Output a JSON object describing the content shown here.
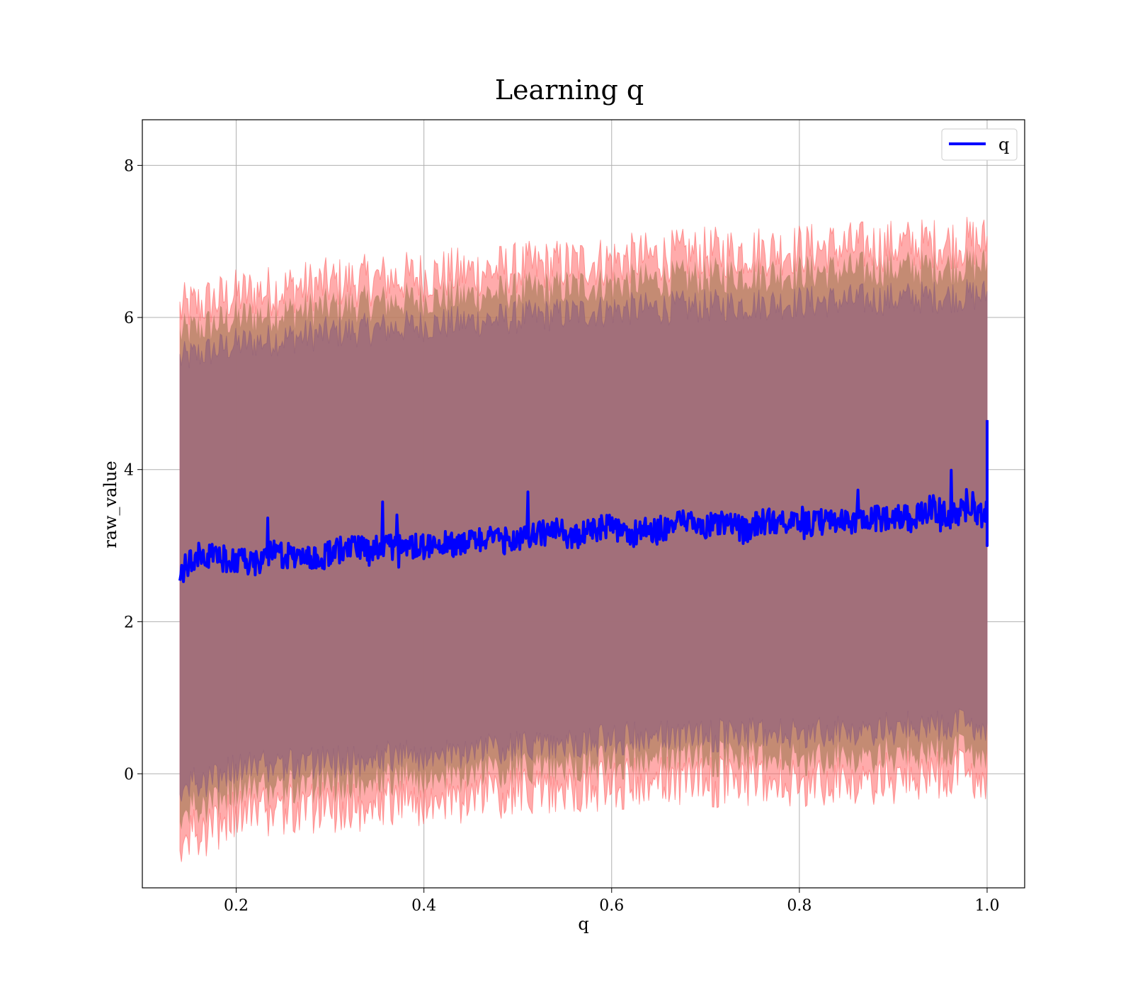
{
  "chart_data": {
    "type": "line",
    "title": "Learning q",
    "xlabel": "q",
    "ylabel": "raw_value",
    "xlim": [
      0.1,
      1.04
    ],
    "ylim": [
      -1.5,
      8.6
    ],
    "x_ticks": [
      0.2,
      0.4,
      0.6,
      0.8,
      1.0
    ],
    "x_tick_labels": [
      "0.2",
      "0.4",
      "0.6",
      "0.8",
      "1.0"
    ],
    "y_ticks": [
      0,
      2,
      4,
      6,
      8
    ],
    "y_tick_labels": [
      "0",
      "2",
      "4",
      "6",
      "8"
    ],
    "grid": true,
    "legend": {
      "position": "top-right",
      "entries": [
        "q"
      ]
    },
    "colors": {
      "line": "#0000ff",
      "band_outer": "#ff6666",
      "band_mid": "#b08060",
      "band_inner": "#a06e7a"
    },
    "series": [
      {
        "name": "q",
        "x": [
          0.14,
          0.16,
          0.18,
          0.2,
          0.22,
          0.24,
          0.26,
          0.28,
          0.3,
          0.32,
          0.34,
          0.36,
          0.38,
          0.4,
          0.42,
          0.44,
          0.46,
          0.48,
          0.5,
          0.52,
          0.54,
          0.56,
          0.58,
          0.6,
          0.62,
          0.64,
          0.66,
          0.68,
          0.7,
          0.72,
          0.74,
          0.76,
          0.78,
          0.8,
          0.82,
          0.84,
          0.86,
          0.88,
          0.9,
          0.92,
          0.94,
          0.96,
          0.98,
          1.0
        ],
        "y": [
          2.65,
          2.9,
          2.85,
          2.8,
          2.75,
          2.9,
          2.85,
          2.8,
          2.9,
          2.95,
          2.95,
          3.0,
          2.95,
          3.0,
          3.05,
          3.0,
          3.1,
          3.05,
          3.1,
          3.15,
          3.2,
          3.1,
          3.2,
          3.25,
          3.15,
          3.2,
          3.25,
          3.3,
          3.25,
          3.3,
          3.2,
          3.3,
          3.35,
          3.25,
          3.3,
          3.35,
          3.3,
          3.35,
          3.4,
          3.35,
          3.5,
          3.4,
          3.45,
          3.4
        ],
        "final_spike": [
          3.0,
          4.65
        ]
      }
    ],
    "bands": {
      "x": [
        0.14,
        0.2,
        0.3,
        0.4,
        0.5,
        0.6,
        0.7,
        0.8,
        0.9,
        1.0
      ],
      "outer_upper": [
        6.1,
        6.3,
        6.45,
        6.55,
        6.65,
        6.75,
        6.85,
        6.9,
        6.95,
        7.0
      ],
      "outer_lower": [
        -0.9,
        -0.55,
        -0.45,
        -0.35,
        -0.25,
        -0.15,
        -0.1,
        -0.1,
        -0.05,
        0.0
      ],
      "mid_upper": [
        5.8,
        6.0,
        6.15,
        6.25,
        6.35,
        6.45,
        6.55,
        6.6,
        6.65,
        6.7
      ],
      "mid_lower": [
        -0.55,
        -0.25,
        -0.15,
        -0.05,
        0.05,
        0.15,
        0.2,
        0.2,
        0.25,
        0.3
      ],
      "inner_upper": [
        5.45,
        5.65,
        5.8,
        5.9,
        6.0,
        6.1,
        6.15,
        6.2,
        6.25,
        6.3
      ],
      "inner_lower": [
        -0.2,
        0.05,
        0.15,
        0.25,
        0.35,
        0.45,
        0.5,
        0.55,
        0.6,
        0.65
      ]
    }
  }
}
